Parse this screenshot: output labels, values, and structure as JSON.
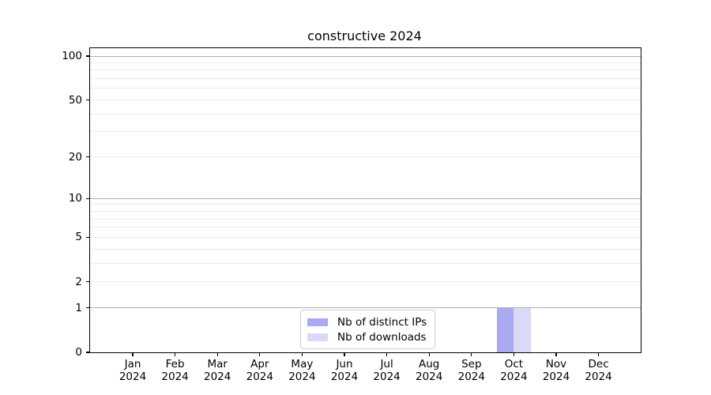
{
  "title": "constructive 2024",
  "chart_data": {
    "type": "bar",
    "title": "constructive 2024",
    "categories": [
      "Jan",
      "Feb",
      "Mar",
      "Apr",
      "May",
      "Jun",
      "Jul",
      "Aug",
      "Sep",
      "Oct",
      "Nov",
      "Dec"
    ],
    "year": "2024",
    "series": [
      {
        "name": "Nb of distinct IPs",
        "color": "#aaaaf0",
        "values": [
          0,
          0,
          0,
          0,
          0,
          0,
          0,
          0,
          0,
          1,
          0,
          0
        ]
      },
      {
        "name": "Nb of downloads",
        "color": "#dadaf8",
        "values": [
          0,
          0,
          0,
          0,
          0,
          0,
          0,
          0,
          0,
          1,
          0,
          0
        ]
      }
    ],
    "xlabel": "",
    "ylabel": "",
    "y_scale": "log1p",
    "y_ticks": [
      0,
      1,
      2,
      5,
      10,
      20,
      50,
      100
    ],
    "y_major_gridlines": [
      1,
      10,
      100
    ],
    "y_minor_gridlines": [
      2,
      3,
      4,
      5,
      6,
      7,
      8,
      9,
      20,
      30,
      40,
      50,
      60,
      70,
      80,
      90
    ],
    "ylim": [
      0,
      113
    ],
    "grid": true,
    "legend_position": "lower center"
  },
  "colors": {
    "axis": "#000000",
    "major_grid": "#b0b0b0",
    "minor_grid": "#ececec",
    "background": "#ffffff",
    "legend_border": "#cccccc"
  }
}
